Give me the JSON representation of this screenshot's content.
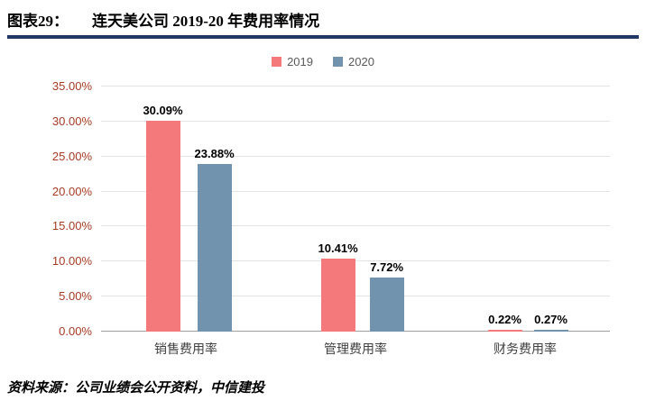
{
  "header": {
    "label": "图表29：",
    "title": "连天美公司 2019-20 年费用率情况"
  },
  "chart_data": {
    "type": "bar",
    "title": "连天美公司 2019-20 年费用率情况",
    "categories": [
      "销售费用率",
      "管理费用率",
      "财务费用率"
    ],
    "series": [
      {
        "name": "2019",
        "color": "#F4797B",
        "values": [
          30.09,
          10.41,
          0.22
        ],
        "labels": [
          "30.09%",
          "10.41%",
          "0.22%"
        ]
      },
      {
        "name": "2020",
        "color": "#7193AD",
        "values": [
          23.88,
          7.72,
          0.27
        ],
        "labels": [
          "23.88%",
          "7.72%",
          "0.27%"
        ]
      }
    ],
    "xlabel": "",
    "ylabel": "",
    "ylim": [
      0,
      35
    ],
    "ytick_step": 5,
    "ytick_labels": [
      "0.00%",
      "5.00%",
      "10.00%",
      "15.00%",
      "20.00%",
      "25.00%",
      "30.00%",
      "35.00%"
    ],
    "grid": true,
    "legend_position": "top"
  },
  "footer": {
    "source": "资料来源：公司业绩会公开资料，中信建投"
  },
  "colors": {
    "accent_rule": "#1F3864",
    "series_2019": "#F4797B",
    "series_2020": "#7193AD",
    "ytick_text": "#A63B22",
    "gridline": "#E3E3E3",
    "axis_line": "#9E9E9E"
  }
}
